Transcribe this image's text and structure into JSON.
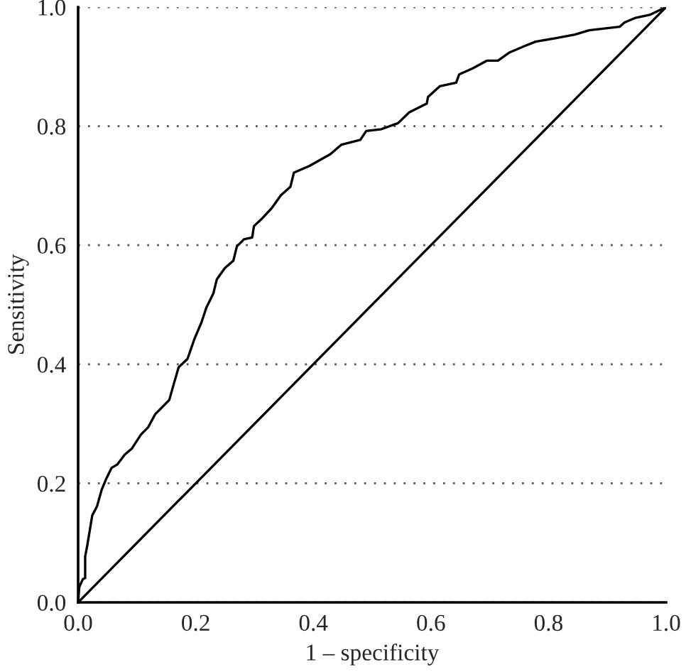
{
  "chart_data": {
    "type": "line",
    "xlabel": "1 – specificity",
    "ylabel": "Sensitivity",
    "xlim": [
      0,
      1
    ],
    "ylim": [
      0,
      1
    ],
    "xticks": [
      {
        "value": 0,
        "label": "0.0"
      },
      0.2,
      0.4,
      0.6,
      0.8,
      {
        "value": 1,
        "label": "1.0"
      }
    ],
    "yticks": [
      {
        "value": 0,
        "label": "0.0"
      },
      0.2,
      0.4,
      0.6,
      0.8,
      {
        "value": 1,
        "label": "1.0"
      }
    ],
    "grid": "y",
    "legend": false,
    "marker": "none",
    "line_style": "solid",
    "series": [
      {
        "color": "#000000",
        "x": [
          0,
          0.002,
          0.008,
          0.012,
          0.012,
          0.016,
          0.02,
          0.024,
          0.032,
          0.04,
          0.048,
          0.057,
          0.067,
          0.079,
          0.091,
          0.107,
          0.119,
          0.131,
          0.139,
          0.155,
          0.163,
          0.171,
          0.186,
          0.198,
          0.21,
          0.218,
          0.23,
          0.236,
          0.25,
          0.264,
          0.27,
          0.282,
          0.296,
          0.299,
          0.312,
          0.329,
          0.345,
          0.361,
          0.367,
          0.393,
          0.429,
          0.448,
          0.48,
          0.49,
          0.516,
          0.544,
          0.563,
          0.593,
          0.595,
          0.615,
          0.643,
          0.648,
          0.671,
          0.695,
          0.714,
          0.734,
          0.758,
          0.778,
          0.813,
          0.845,
          0.869,
          0.921,
          0.929,
          0.948,
          0.972,
          1.0
        ],
        "values": [
          0,
          0.026,
          0.039,
          0.041,
          0.077,
          0.098,
          0.122,
          0.146,
          0.161,
          0.189,
          0.208,
          0.226,
          0.232,
          0.248,
          0.258,
          0.282,
          0.294,
          0.316,
          0.324,
          0.34,
          0.368,
          0.395,
          0.409,
          0.443,
          0.471,
          0.495,
          0.519,
          0.543,
          0.562,
          0.574,
          0.598,
          0.61,
          0.613,
          0.632,
          0.644,
          0.662,
          0.684,
          0.698,
          0.722,
          0.733,
          0.753,
          0.769,
          0.777,
          0.792,
          0.795,
          0.805,
          0.823,
          0.838,
          0.849,
          0.867,
          0.873,
          0.887,
          0.897,
          0.91,
          0.91,
          0.924,
          0.934,
          0.942,
          0.948,
          0.954,
          0.961,
          0.967,
          0.974,
          0.982,
          0.987,
          1.0
        ]
      },
      {
        "color": "#000000",
        "x": [
          0,
          1
        ],
        "values": [
          0,
          1
        ]
      }
    ]
  }
}
